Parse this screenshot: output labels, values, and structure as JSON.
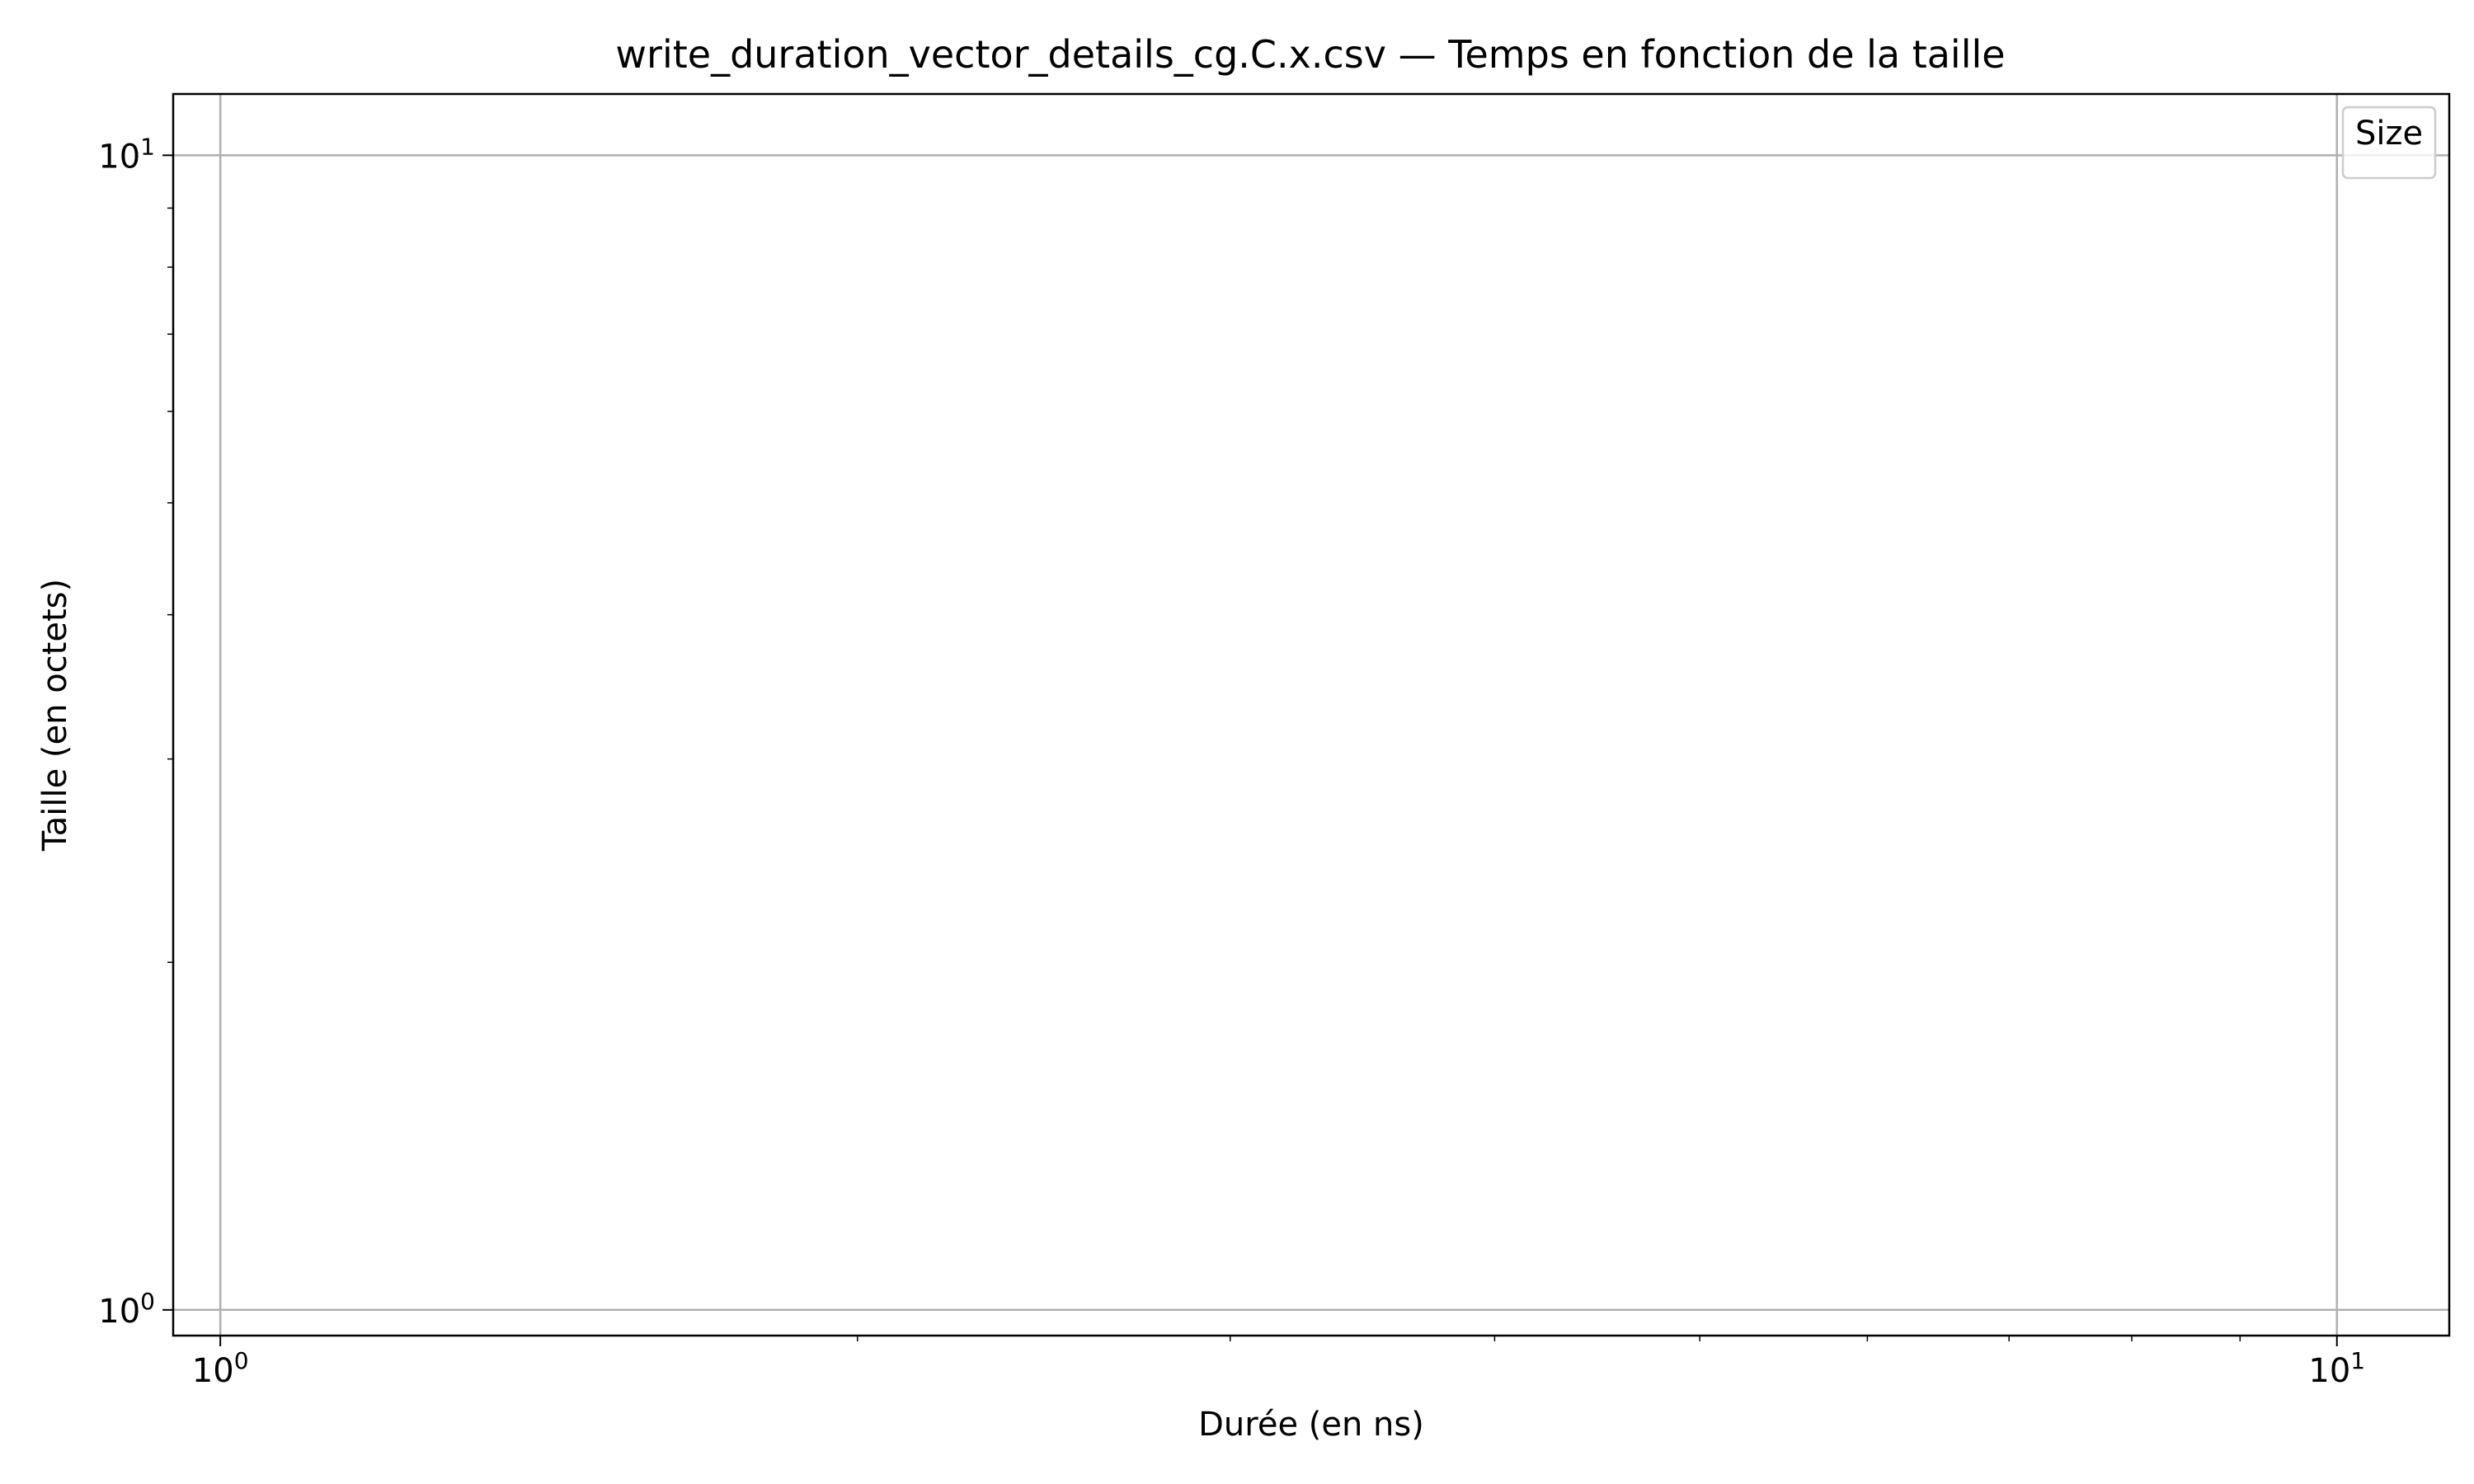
{
  "chart_data": {
    "type": "scatter",
    "title": "write_duration_vector_details_cg.C.x.csv — Temps en fonction de la taille",
    "xlabel": "Durée (en ns)",
    "ylabel": "Taille (en octets)",
    "xscale": "log",
    "yscale": "log",
    "xlim": [
      0.95,
      11.3
    ],
    "ylim": [
      0.95,
      11.3
    ],
    "x_ticks": [
      {
        "value": 1,
        "base": "10",
        "exp": "0"
      },
      {
        "value": 10,
        "base": "10",
        "exp": "1"
      }
    ],
    "y_ticks": [
      {
        "value": 1,
        "base": "10",
        "exp": "0"
      },
      {
        "value": 10,
        "base": "10",
        "exp": "1"
      }
    ],
    "grid": true,
    "legend": {
      "title": "Size",
      "placement": "top-right",
      "entries": []
    },
    "series": []
  }
}
